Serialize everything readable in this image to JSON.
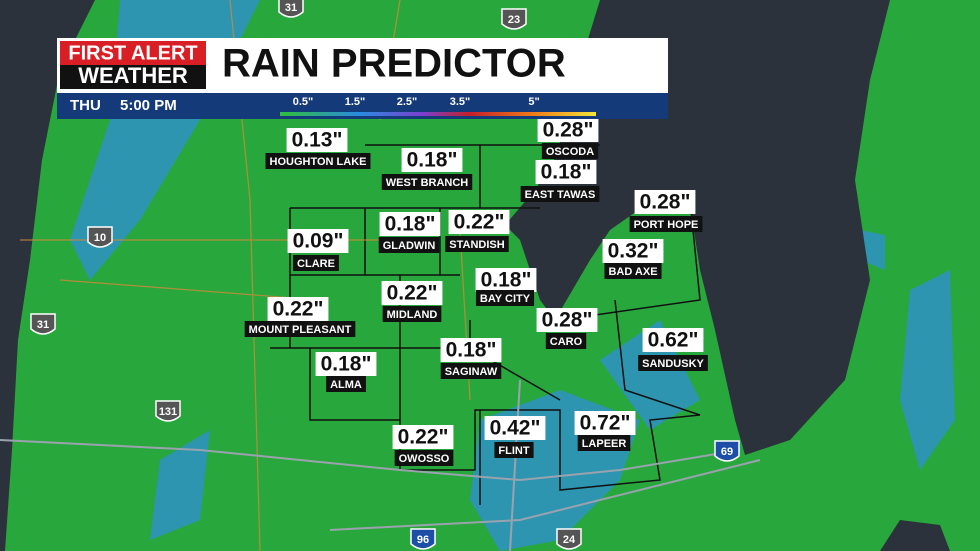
{
  "header": {
    "logo_top": "FIRST ALERT",
    "logo_bottom": "WEATHER",
    "title": "RAIN PREDICTOR",
    "day": "THU",
    "time": "5:00 PM"
  },
  "legend": {
    "labels": [
      "0.5\"",
      "1.5\"",
      "2.5\"",
      "3.5\"",
      "5\""
    ]
  },
  "cities": [
    {
      "amount": "0.13\"",
      "name": "HOUGHTON LAKE"
    },
    {
      "amount": "0.18\"",
      "name": "WEST BRANCH"
    },
    {
      "amount": "0.28\"",
      "name": "OSCODA"
    },
    {
      "amount": "0.18\"",
      "name": "EAST TAWAS"
    },
    {
      "amount": "0.28\"",
      "name": "PORT HOPE"
    },
    {
      "amount": "0.22\"",
      "name": "STANDISH"
    },
    {
      "amount": "0.18\"",
      "name": "GLADWIN"
    },
    {
      "amount": "0.09\"",
      "name": "CLARE"
    },
    {
      "amount": "0.32\"",
      "name": "BAD AXE"
    },
    {
      "amount": "0.18\"",
      "name": "BAY CITY"
    },
    {
      "amount": "0.22\"",
      "name": "MIDLAND"
    },
    {
      "amount": "0.22\"",
      "name": "MOUNT PLEASANT"
    },
    {
      "amount": "0.28\"",
      "name": "CARO"
    },
    {
      "amount": "0.62\"",
      "name": "SANDUSKY"
    },
    {
      "amount": "0.18\"",
      "name": "SAGINAW"
    },
    {
      "amount": "0.18\"",
      "name": "ALMA"
    },
    {
      "amount": "0.22\"",
      "name": "OWOSSO"
    },
    {
      "amount": "0.42\"",
      "name": "FLINT"
    },
    {
      "amount": "0.72\"",
      "name": "LAPEER"
    }
  ],
  "highways": [
    "31",
    "23",
    "10",
    "31",
    "131",
    "69",
    "96",
    "24"
  ]
}
